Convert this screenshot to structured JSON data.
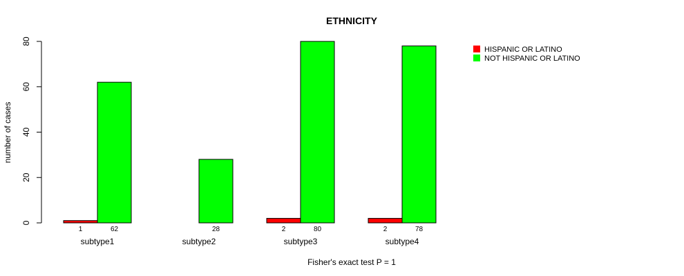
{
  "chart_data": {
    "type": "bar",
    "title": "ETHNICITY",
    "xlabel": "Fisher's exact test P = 1",
    "ylabel": "number of cases",
    "ylim": [
      0,
      80
    ],
    "yticks": [
      0,
      20,
      40,
      60,
      80
    ],
    "categories": [
      "subtype1",
      "subtype2",
      "subtype3",
      "subtype4"
    ],
    "series": [
      {
        "name": "HISPANIC OR LATINO",
        "color": "#ff0000",
        "values": [
          1,
          0,
          2,
          2
        ],
        "labels": [
          "1",
          "",
          "2",
          "2"
        ]
      },
      {
        "name": "NOT HISPANIC OR LATINO",
        "color": "#00ff00",
        "values": [
          62,
          28,
          80,
          78
        ],
        "labels": [
          "62",
          "28",
          "80",
          "78"
        ]
      }
    ],
    "legend_position": "top-right"
  }
}
